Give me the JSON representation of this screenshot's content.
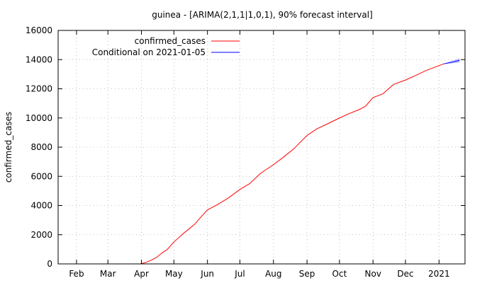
{
  "chart_data": {
    "type": "line",
    "title": "guinea -  [ARIMA(2,1,1|1,0,1), 90% forecast interval]",
    "xlabel": "",
    "ylabel": "confirmed_cases",
    "ylim": [
      0,
      16000
    ],
    "xlim": [
      "2020-01-15",
      "2021-01-25"
    ],
    "yticks": [
      0,
      2000,
      4000,
      6000,
      8000,
      10000,
      12000,
      14000,
      16000
    ],
    "ytick_labels": [
      "0",
      "2000",
      "4000",
      "6000",
      "8000",
      "10000",
      "12000",
      "14000",
      "16000"
    ],
    "xticks": [
      "2020-02-01",
      "2020-03-01",
      "2020-04-01",
      "2020-05-01",
      "2020-06-01",
      "2020-07-01",
      "2020-08-01",
      "2020-09-01",
      "2020-10-01",
      "2020-11-01",
      "2020-12-01",
      "2021-01-01"
    ],
    "xtick_labels": [
      "Feb",
      "Mar",
      "Apr",
      "May",
      "Jun",
      "Jul",
      "Aug",
      "Sep",
      "Oct",
      "Nov",
      "Dec",
      "2021"
    ],
    "grid": true,
    "legend_position": "top-left",
    "series": [
      {
        "name": "confirmed_cases",
        "color": "#ff0000",
        "x": [
          "2020-03-31",
          "2020-04-05",
          "2020-04-10",
          "2020-04-15",
          "2020-04-20",
          "2020-04-25",
          "2020-05-01",
          "2020-05-10",
          "2020-05-20",
          "2020-05-27",
          "2020-06-01",
          "2020-06-10",
          "2020-06-20",
          "2020-07-01",
          "2020-07-10",
          "2020-07-20",
          "2020-08-01",
          "2020-08-10",
          "2020-08-20",
          "2020-09-01",
          "2020-09-10",
          "2020-09-20",
          "2020-10-01",
          "2020-10-10",
          "2020-10-20",
          "2020-10-25",
          "2020-11-01",
          "2020-11-10",
          "2020-11-20",
          "2020-12-01",
          "2020-12-10",
          "2020-12-20",
          "2021-01-05"
        ],
        "y": [
          0,
          100,
          250,
          450,
          750,
          1000,
          1500,
          2100,
          2700,
          3300,
          3700,
          4050,
          4500,
          5100,
          5500,
          6200,
          6800,
          7300,
          7900,
          8800,
          9250,
          9600,
          10000,
          10300,
          10600,
          10800,
          11400,
          11650,
          12300,
          12600,
          12900,
          13250,
          13700
        ]
      },
      {
        "name": "Conditional on 2021-01-05",
        "color": "#0000ff",
        "band_color": "#9999ff",
        "x": [
          "2021-01-05",
          "2021-01-10",
          "2021-01-15",
          "2021-01-20"
        ],
        "y": [
          13700,
          13780,
          13860,
          13950
        ],
        "lower": [
          13700,
          13720,
          13760,
          13800
        ],
        "upper": [
          13700,
          13840,
          13960,
          14100
        ]
      }
    ]
  }
}
